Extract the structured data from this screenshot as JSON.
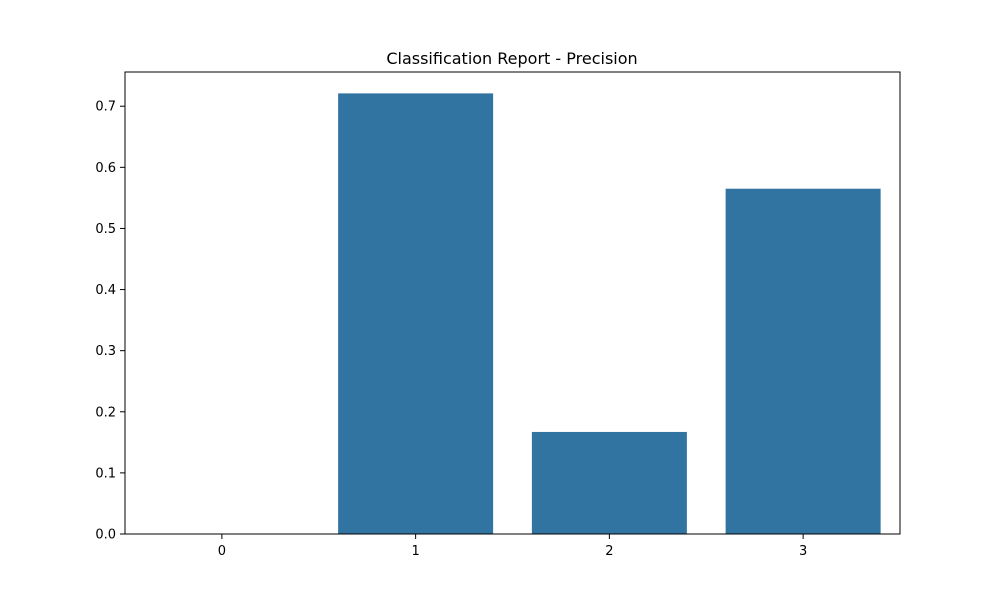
{
  "chart_data": {
    "type": "bar",
    "title": "Classification Report - Precision",
    "xlabel": "",
    "ylabel": "",
    "categories": [
      "0",
      "1",
      "2",
      "3"
    ],
    "values": [
      0.0,
      0.721,
      0.167,
      0.565
    ],
    "ylim": [
      0,
      0.756
    ],
    "yticks": [
      0.0,
      0.1,
      0.2,
      0.3,
      0.4,
      0.5,
      0.6,
      0.7
    ],
    "ytick_labels": [
      "0.0",
      "0.1",
      "0.2",
      "0.3",
      "0.4",
      "0.5",
      "0.6",
      "0.7"
    ],
    "grid": false,
    "legend": "none",
    "colors": {
      "bar": "#3274a1",
      "axis": "#000000",
      "background": "#ffffff"
    }
  }
}
